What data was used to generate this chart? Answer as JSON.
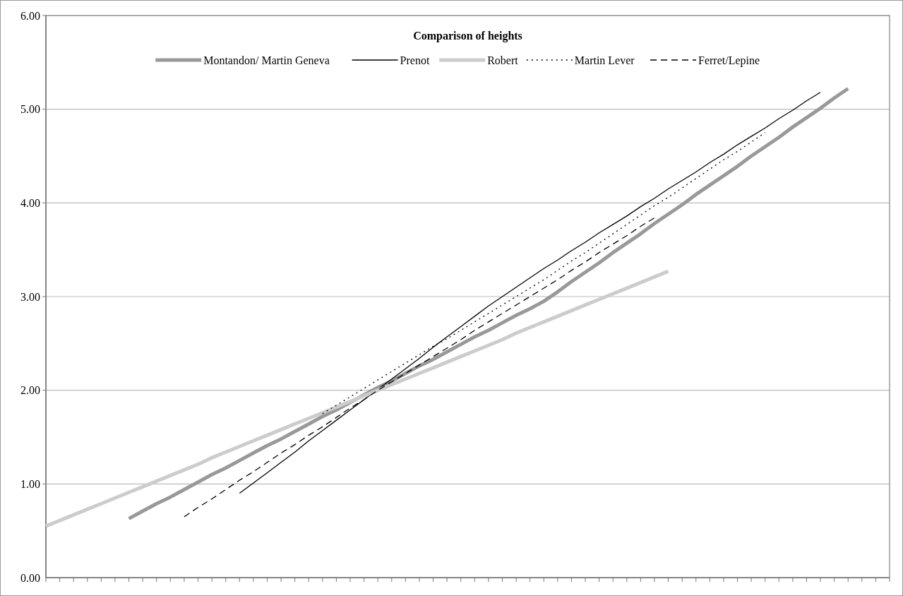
{
  "chart_data": {
    "type": "line",
    "title": "Comparison of heights",
    "categories": [
      null,
      null,
      null,
      null,
      null,
      null,
      null,
      null,
      null,
      null,
      null,
      null,
      null,
      null,
      null,
      null,
      null,
      null,
      null,
      null,
      null,
      null,
      null,
      null,
      null,
      null,
      null,
      null,
      null,
      null,
      null,
      null,
      null,
      null,
      null,
      null,
      null,
      null,
      null,
      null,
      null,
      null,
      null,
      null,
      null,
      null,
      null,
      null,
      null,
      null,
      null,
      null,
      null,
      null,
      null,
      null,
      null,
      null,
      null,
      null,
      null,
      null
    ],
    "ylim": [
      0,
      6
    ],
    "yticks": [
      {
        "value": 0,
        "label": "0.00"
      },
      {
        "value": 1,
        "label": "1.00"
      },
      {
        "value": 2,
        "label": "2.00"
      },
      {
        "value": 3,
        "label": "3.00"
      },
      {
        "value": 4,
        "label": "4.00"
      },
      {
        "value": 5,
        "label": "5.00"
      },
      {
        "value": 6,
        "label": "6.00"
      }
    ],
    "tick_labels": "y",
    "grid": "y",
    "legend": "top",
    "marker": "none",
    "series": [
      {
        "name": "Montandon/ Martin Geneva",
        "color": "#999999",
        "line_style": "solid",
        "values": [
          null,
          null,
          null,
          null,
          null,
          null,
          0.63,
          0.71,
          0.79,
          0.86,
          0.94,
          1.02,
          1.1,
          1.17,
          1.25,
          1.33,
          1.41,
          1.48,
          1.56,
          1.64,
          1.72,
          1.79,
          1.87,
          1.95,
          2.03,
          2.1,
          2.18,
          2.26,
          2.33,
          2.41,
          2.49,
          2.57,
          2.64,
          2.72,
          2.8,
          2.87,
          2.95,
          3.05,
          3.16,
          3.26,
          3.36,
          3.47,
          3.57,
          3.67,
          3.78,
          3.88,
          3.98,
          4.09,
          4.19,
          4.29,
          4.39,
          4.5,
          4.6,
          4.7,
          4.81,
          4.91,
          5.01,
          5.12,
          5.22,
          null,
          null,
          null
        ]
      },
      {
        "name": "Prenot",
        "color": "#000000",
        "line_style": "solid",
        "values": [
          null,
          null,
          null,
          null,
          null,
          null,
          null,
          null,
          null,
          null,
          null,
          null,
          null,
          null,
          0.9,
          1.01,
          1.12,
          1.23,
          1.34,
          1.46,
          1.57,
          1.68,
          1.79,
          1.9,
          2.01,
          2.12,
          2.23,
          2.34,
          2.46,
          2.57,
          2.68,
          2.79,
          2.9,
          3.0,
          3.1,
          3.2,
          3.3,
          3.39,
          3.49,
          3.58,
          3.68,
          3.77,
          3.86,
          3.96,
          4.05,
          4.15,
          4.24,
          4.33,
          4.43,
          4.52,
          4.62,
          4.71,
          4.8,
          4.9,
          4.99,
          5.09,
          5.18,
          null,
          null,
          null,
          null,
          null
        ]
      },
      {
        "name": "Robert",
        "color": "#cccccc",
        "line_style": "solid",
        "values": [
          0.55,
          0.61,
          0.67,
          0.73,
          0.79,
          0.85,
          0.91,
          0.97,
          1.03,
          1.09,
          1.15,
          1.21,
          1.28,
          1.34,
          1.4,
          1.46,
          1.52,
          1.58,
          1.64,
          1.7,
          1.76,
          1.82,
          1.88,
          1.94,
          2.0,
          2.06,
          2.12,
          2.18,
          2.24,
          2.3,
          2.36,
          2.42,
          2.48,
          2.54,
          2.61,
          2.67,
          2.73,
          2.79,
          2.85,
          2.91,
          2.97,
          3.03,
          3.09,
          3.15,
          3.21,
          3.27,
          null,
          null,
          null,
          null,
          null,
          null,
          null,
          null,
          null,
          null,
          null,
          null,
          null,
          null,
          null,
          null
        ]
      },
      {
        "name": "Martin Lever",
        "color": "#000000",
        "line_style": "dotted",
        "values": [
          null,
          null,
          null,
          null,
          null,
          null,
          null,
          null,
          null,
          null,
          null,
          null,
          null,
          null,
          null,
          null,
          null,
          null,
          null,
          null,
          1.75,
          1.84,
          1.93,
          2.02,
          2.11,
          2.2,
          2.29,
          2.38,
          2.47,
          2.55,
          2.64,
          2.73,
          2.82,
          2.91,
          3.0,
          3.09,
          3.18,
          3.28,
          3.38,
          3.47,
          3.57,
          3.67,
          3.77,
          3.87,
          3.97,
          4.06,
          4.16,
          4.26,
          4.36,
          4.46,
          4.55,
          4.65,
          4.75,
          null,
          null,
          null,
          null,
          null,
          null,
          null,
          null,
          null
        ]
      },
      {
        "name": "Ferret/Lepine",
        "color": "#000000",
        "line_style": "dashed",
        "values": [
          null,
          null,
          null,
          null,
          null,
          null,
          null,
          null,
          null,
          null,
          0.65,
          0.75,
          0.84,
          0.94,
          1.04,
          1.13,
          1.23,
          1.33,
          1.42,
          1.52,
          1.61,
          1.71,
          1.81,
          1.9,
          2.0,
          2.09,
          2.18,
          2.27,
          2.36,
          2.45,
          2.54,
          2.64,
          2.73,
          2.82,
          2.91,
          3.0,
          3.09,
          3.18,
          3.28,
          3.37,
          3.47,
          3.56,
          3.65,
          3.75,
          3.84,
          null,
          null,
          null,
          null,
          null,
          null,
          null,
          null,
          null,
          null,
          null,
          null,
          null,
          null,
          null,
          null,
          null
        ]
      }
    ]
  }
}
